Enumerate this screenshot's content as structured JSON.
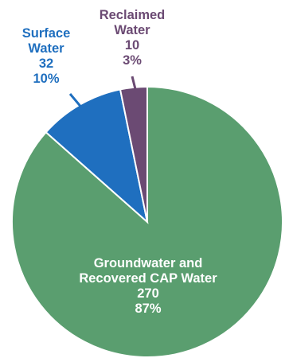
{
  "chart_data": {
    "type": "pie",
    "categories": [
      "Groundwater and Recovered CAP Water",
      "Surface Water",
      "Reclaimed Water"
    ],
    "values": [
      270,
      32,
      10
    ],
    "percents": [
      "87%",
      "10%",
      "3%"
    ],
    "colors": [
      "#5a9e6f",
      "#1f6fbf",
      "#6b4a73"
    ],
    "start_angle_deg": 0,
    "direction": "clockwise",
    "labels": [
      {
        "lines": [
          "Groundwater and",
          "Recovered CAP Water",
          "270",
          "87%"
        ],
        "color": "#ffffff"
      },
      {
        "lines": [
          "Surface",
          "Water",
          "32",
          "10%"
        ],
        "color": "#1f6fbf"
      },
      {
        "lines": [
          "Reclaimed",
          "Water",
          "10",
          "3%"
        ],
        "color": "#6b4a73"
      }
    ]
  }
}
